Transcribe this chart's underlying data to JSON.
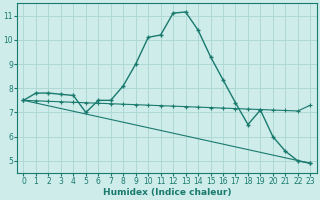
{
  "xlabel": "Humidex (Indice chaleur)",
  "bg_color": "#cdecea",
  "grid_color": "#b0d8d4",
  "line_color": "#1a7a6e",
  "xlim": [
    -0.5,
    23.5
  ],
  "ylim": [
    4.5,
    11.5
  ],
  "xticks": [
    0,
    1,
    2,
    3,
    4,
    5,
    6,
    7,
    8,
    9,
    10,
    11,
    12,
    13,
    14,
    15,
    16,
    17,
    18,
    19,
    20,
    21,
    22,
    23
  ],
  "yticks": [
    5,
    6,
    7,
    8,
    9,
    10,
    11
  ],
  "line1_x": [
    0,
    1,
    2,
    3,
    4,
    5,
    6,
    7,
    8,
    9,
    10,
    11,
    12,
    13,
    14,
    15,
    16,
    17,
    18,
    19,
    20,
    21,
    22,
    23
  ],
  "line1_y": [
    7.5,
    7.8,
    7.8,
    7.75,
    7.7,
    7.0,
    7.5,
    7.5,
    8.1,
    9.0,
    10.1,
    10.2,
    11.1,
    11.15,
    10.4,
    9.3,
    8.35,
    7.4,
    6.5,
    7.1,
    6.0,
    5.4,
    5.0,
    4.9
  ],
  "line2_x": [
    0,
    1,
    2,
    3,
    4,
    5,
    6,
    7,
    8,
    9,
    10,
    11,
    12,
    13,
    14,
    15,
    16,
    17,
    18,
    19,
    20,
    21,
    22,
    23
  ],
  "line2_y": [
    7.5,
    7.48,
    7.46,
    7.44,
    7.42,
    7.4,
    7.38,
    7.36,
    7.34,
    7.32,
    7.3,
    7.28,
    7.26,
    7.24,
    7.22,
    7.2,
    7.18,
    7.16,
    7.14,
    7.12,
    7.1,
    7.08,
    7.06,
    7.3
  ],
  "line3_x": [
    0,
    23
  ],
  "line3_y": [
    7.5,
    4.9
  ]
}
